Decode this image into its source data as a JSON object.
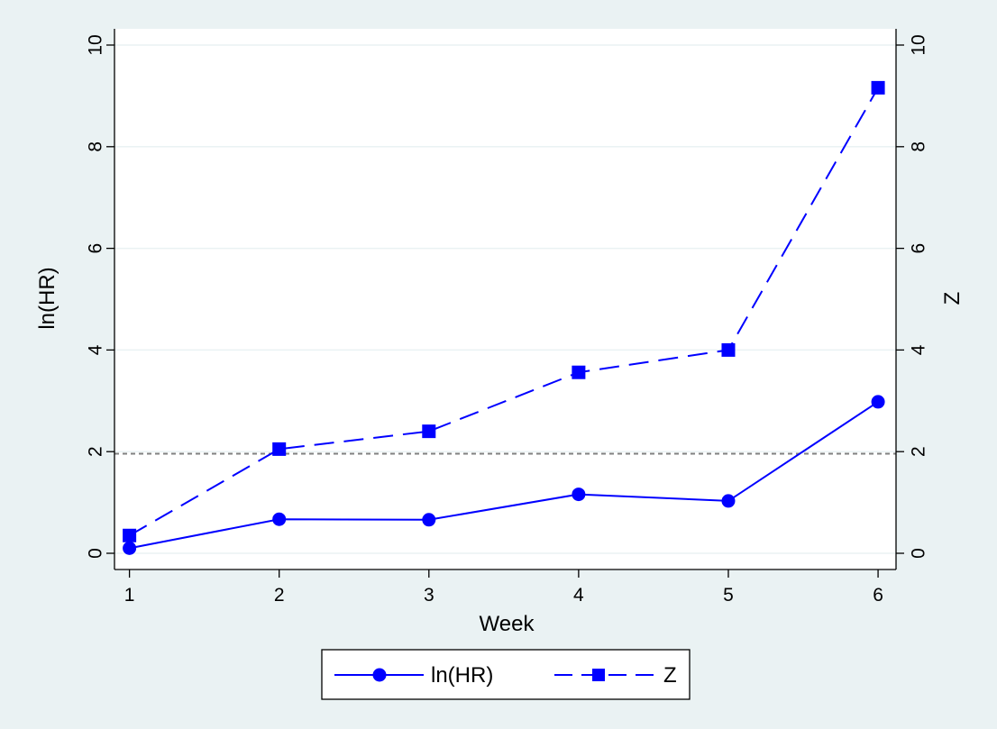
{
  "chart_data": {
    "type": "line",
    "xlabel": "Week",
    "ylabel": "ln(HR)",
    "y2label": "Z",
    "x": [
      1,
      2,
      3,
      4,
      5,
      6
    ],
    "xlim": [
      0.9,
      6.12
    ],
    "ylim": [
      0,
      10
    ],
    "y2lim": [
      0,
      10
    ],
    "yticks": [
      "0",
      "2",
      "4",
      "6",
      "8",
      "10"
    ],
    "y2ticks": [
      "0",
      "2",
      "4",
      "6",
      "8",
      "10"
    ],
    "xticks": [
      "1",
      "2",
      "3",
      "4",
      "5",
      "6"
    ],
    "reference_line": {
      "y": 1.96,
      "style": "dashed",
      "color": "#808080"
    },
    "grid": true,
    "legend_position": "bottom",
    "series": [
      {
        "name": "ln(HR)",
        "values": [
          0.1,
          0.67,
          0.66,
          1.16,
          1.03,
          2.98
        ],
        "marker": "circle",
        "line": "solid",
        "color": "#0000ff",
        "axis": "left"
      },
      {
        "name": "Z",
        "values": [
          0.35,
          2.05,
          2.4,
          3.56,
          4.0,
          9.16
        ],
        "marker": "square",
        "line": "dashed",
        "color": "#0000ff",
        "axis": "right"
      }
    ],
    "colors": {
      "background": "#eaf2f3",
      "plot_bg": "#ffffff",
      "grid": "#eaf2f3",
      "series": "#0000ff"
    }
  }
}
